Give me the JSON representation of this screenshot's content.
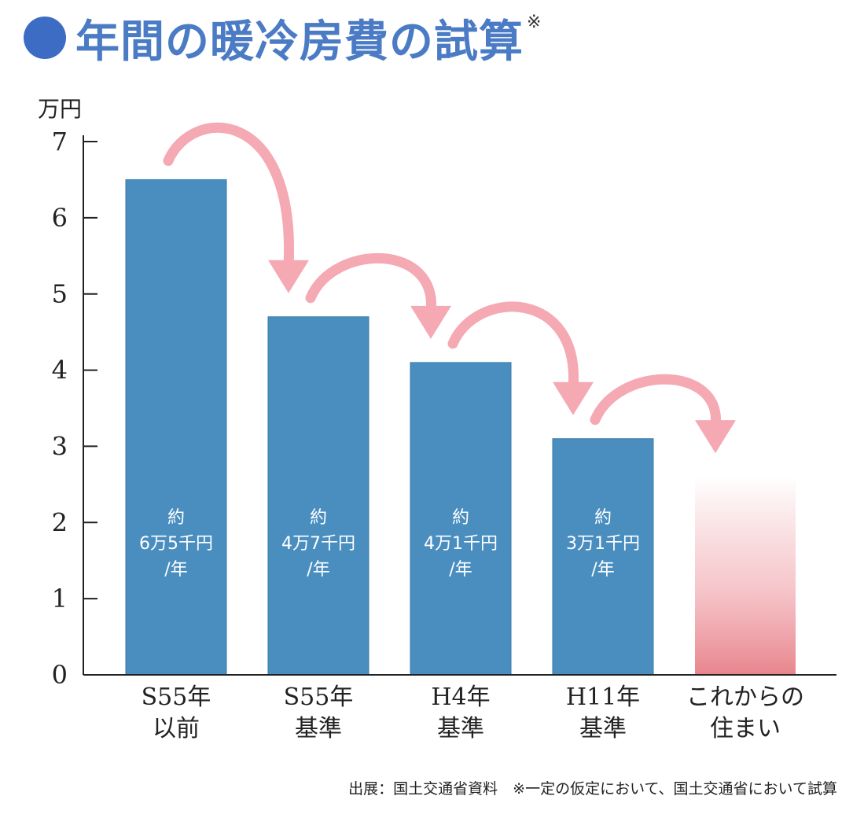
{
  "title": "年間の暖冷房費の試算",
  "title_note": "※",
  "source": "出展：国土交通省資料　※一定の仮定において、国土交通省において試算",
  "colors": {
    "title": "#4a7bc4",
    "dot": "#3d6cc4",
    "bar": "#4a8ec0",
    "bar_edge": "#3a78aa",
    "future_bar": "#e98b92",
    "arrow": "#f4a9b3",
    "axis": "#222222"
  },
  "chart_data": {
    "type": "bar",
    "ylabel": "万円",
    "ylim": [
      0,
      7
    ],
    "yticks": [
      "0",
      "1",
      "2",
      "3",
      "4",
      "5",
      "6",
      "7"
    ],
    "categories": [
      [
        "S55年",
        "以前"
      ],
      [
        "S55年",
        "基準"
      ],
      [
        "H4年",
        "基準"
      ],
      [
        "H11年",
        "基準"
      ],
      [
        "これからの",
        "住まい"
      ]
    ],
    "values": [
      6.5,
      4.7,
      4.1,
      3.1,
      2.6
    ],
    "data_labels": [
      [
        "約",
        "6万5千円",
        "/年"
      ],
      [
        "約",
        "4万7千円",
        "/年"
      ],
      [
        "約",
        "4万1千円",
        "/年"
      ],
      [
        "約",
        "3万1千円",
        "/年"
      ],
      []
    ],
    "bar_styles": [
      "solid",
      "solid",
      "solid",
      "solid",
      "gradient"
    ],
    "annotations": "curved pink arrows from each bar to the next"
  }
}
